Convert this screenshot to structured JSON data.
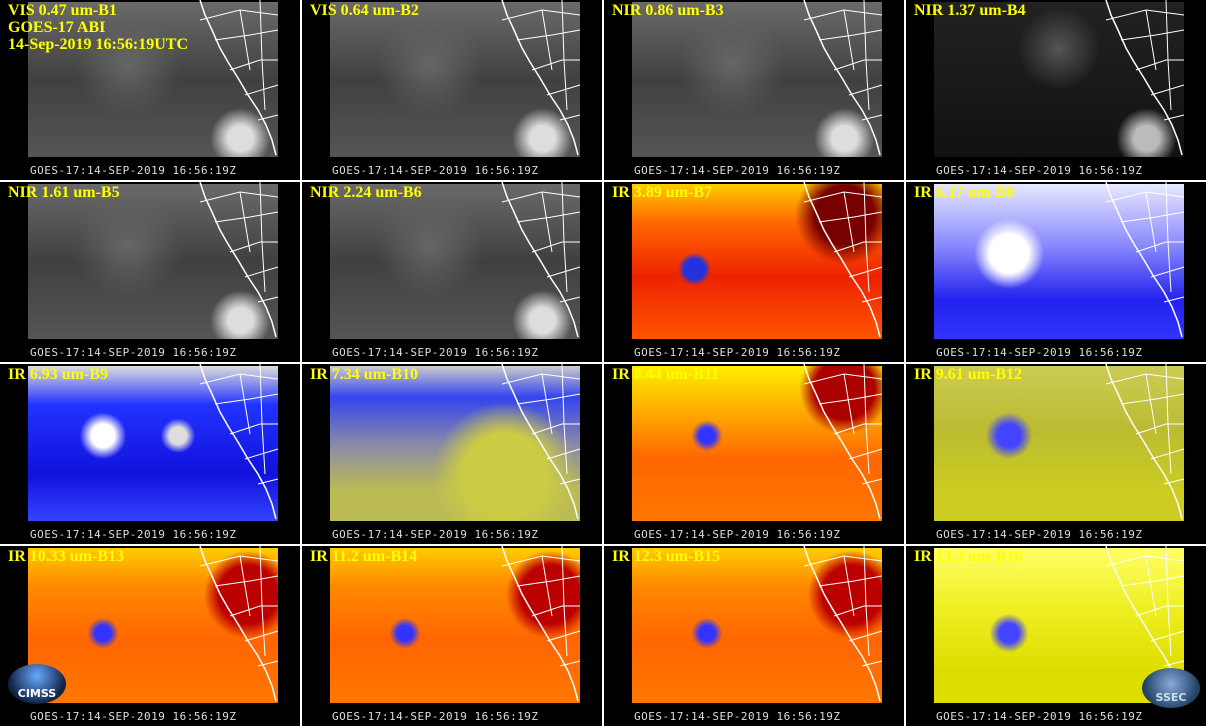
{
  "header": {
    "sensor": "GOES-17 ABI",
    "time": "14-Sep-2019 16:56:19UTC"
  },
  "panels": [
    {
      "label": "VIS 0.47 um-B1",
      "footer": "GOES-17:14-SEP-2019 16:56:19Z"
    },
    {
      "label": "VIS 0.64 um-B2",
      "footer": "GOES-17:14-SEP-2019 16:56:19Z"
    },
    {
      "label": "NIR 0.86 um-B3",
      "footer": "GOES-17:14-SEP-2019 16:56:19Z"
    },
    {
      "label": "NIR 1.37 um-B4",
      "footer": "GOES-17:14-SEP-2019 16:56:19Z"
    },
    {
      "label": "NIR 1.61 um-B5",
      "footer": "GOES-17:14-SEP-2019 16:56:19Z"
    },
    {
      "label": "NIR 2.24 um-B6",
      "footer": "GOES-17:14-SEP-2019 16:56:19Z"
    },
    {
      "label": "IR 3.89 um-B7",
      "footer": "GOES-17:14-SEP-2019 16:56:19Z"
    },
    {
      "label": "IR 6.17 um-B8",
      "footer": "GOES-17:14-SEP-2019 16:56:19Z"
    },
    {
      "label": "IR 6.93 um-B9",
      "footer": "GOES-17:14-SEP-2019 16:56:19Z"
    },
    {
      "label": "IR 7.34 um-B10",
      "footer": "GOES-17:14-SEP-2019 16:56:19Z"
    },
    {
      "label": "IR 8.44 um-B11",
      "footer": "GOES-17:14-SEP-2019 16:56:19Z"
    },
    {
      "label": "IR 9.61 um-B12",
      "footer": "GOES-17:14-SEP-2019 16:56:19Z"
    },
    {
      "label": "IR 10.33 um-B13",
      "footer": "GOES-17:14-SEP-2019 16:56:19Z"
    },
    {
      "label": "IR 11.2 um-B14",
      "footer": "GOES-17:14-SEP-2019 16:56:19Z"
    },
    {
      "label": "IR 12.3 um-B15",
      "footer": "GOES-17:14-SEP-2019 16:56:19Z"
    },
    {
      "label": "IR 13.3 um-B16",
      "footer": "GOES-17:14-SEP-2019 16:56:19Z"
    }
  ],
  "logos": {
    "left": "CIMSS",
    "right": "SSEC"
  }
}
